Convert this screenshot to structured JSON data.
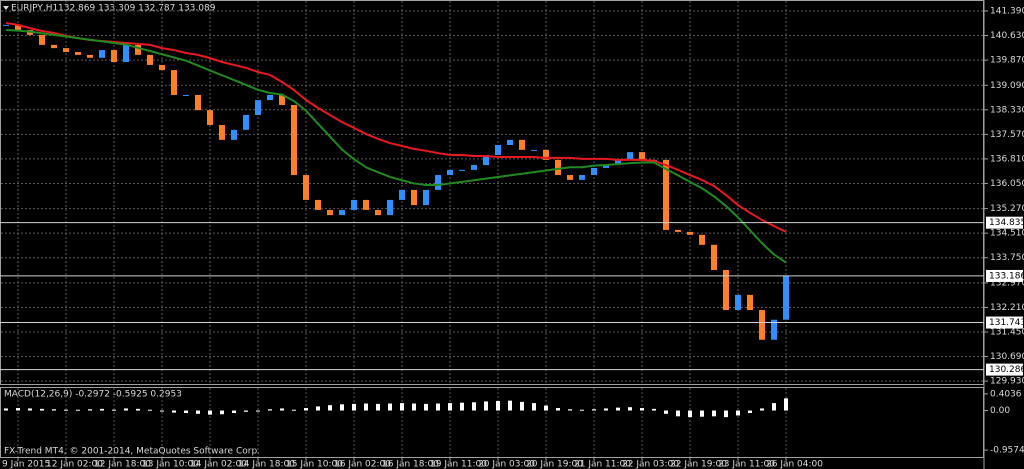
{
  "chart_data": [
    {
      "type": "line",
      "title": "EURJPY,H1",
      "ohlc": "132.869 133.309 132.787 133.089",
      "categories": [
        null,
        "9 Jan 2015",
        null,
        null,
        null,
        "12 Jan 02:00",
        null,
        null,
        null,
        "12 Jan 18:00",
        null,
        null,
        null,
        "13 Jan 10:00",
        null,
        null,
        null,
        "14 Jan 02:00",
        null,
        null,
        null,
        "14 Jan 18:00",
        null,
        null,
        null,
        "15 Jan 10:00",
        null,
        null,
        null,
        "16 Jan 02:00",
        null,
        null,
        null,
        "16 Jan 18:00",
        null,
        null,
        null,
        "19 Jan 11:00",
        null,
        null,
        null,
        "20 Jan 03:00",
        null,
        null,
        null,
        "20 Jan 19:00",
        null,
        null,
        null,
        "21 Jan 11:00",
        null,
        null,
        null,
        "22 Jan 03:00",
        null,
        null,
        null,
        "22 Jan 19:00",
        null,
        null,
        null,
        "23 Jan 11:00",
        null,
        null,
        null,
        "26 Jan 04:00"
      ],
      "series": [
        {
          "style": "candles",
          "color": "#2f8fff",
          "down_color": "#ff7f27",
          "values": [
            140.96,
            140.8,
            140.65,
            140.34,
            140.24,
            140.12,
            140.03,
            139.94,
            140.18,
            139.81,
            140.34,
            140.03,
            139.72,
            139.56,
            138.79,
            138.79,
            138.32,
            137.86,
            137.4,
            137.71,
            138.17,
            138.63,
            138.79,
            138.48,
            136.31,
            135.54,
            135.23,
            135.07,
            135.23,
            135.54,
            135.23,
            135.07,
            135.54,
            135.85,
            135.38,
            135.85,
            136.31,
            136.47,
            136.47,
            136.62,
            136.93,
            137.24,
            137.4,
            137.09,
            137.09,
            136.78,
            136.31,
            136.16,
            136.31,
            136.53,
            136.62,
            136.78,
            137.02,
            136.78,
            136.78,
            134.61,
            134.55,
            134.46,
            134.15,
            133.37,
            132.13,
            132.6,
            132.13,
            131.21,
            131.83,
            133.19
          ]
        },
        {
          "style": "line",
          "color": "#e8181e",
          "values": [
            141.02,
            140.96,
            140.86,
            140.77,
            140.71,
            140.62,
            140.55,
            140.49,
            140.46,
            140.43,
            140.4,
            140.37,
            140.34,
            140.24,
            140.18,
            140.09,
            140.03,
            139.93,
            139.81,
            139.72,
            139.63,
            139.5,
            139.41,
            139.19,
            138.94,
            138.63,
            138.39,
            138.17,
            137.95,
            137.77,
            137.58,
            137.43,
            137.3,
            137.21,
            137.12,
            137.06,
            136.99,
            136.93,
            136.93,
            136.9,
            136.9,
            136.87,
            136.87,
            136.87,
            136.87,
            136.84,
            136.84,
            136.84,
            136.81,
            136.81,
            136.81,
            136.78,
            136.78,
            136.78,
            136.75,
            136.62,
            136.47,
            136.31,
            136.16,
            135.97,
            135.69,
            135.38,
            135.14,
            134.92,
            134.73,
            134.55
          ]
        },
        {
          "style": "line",
          "color": "#1f8a1f",
          "values": [
            140.8,
            140.78,
            140.75,
            140.7,
            140.65,
            140.6,
            140.55,
            140.5,
            140.45,
            140.4,
            140.35,
            140.25,
            140.15,
            140.05,
            139.95,
            139.85,
            139.7,
            139.55,
            139.4,
            139.25,
            139.1,
            138.95,
            138.85,
            138.8,
            138.6,
            138.3,
            137.9,
            137.5,
            137.1,
            136.8,
            136.55,
            136.4,
            136.25,
            136.15,
            136.05,
            136.0,
            136.0,
            136.05,
            136.1,
            136.15,
            136.2,
            136.25,
            136.3,
            136.35,
            136.4,
            136.45,
            136.5,
            136.55,
            136.55,
            136.6,
            136.62,
            136.65,
            136.68,
            136.7,
            136.7,
            136.5,
            136.3,
            136.1,
            135.9,
            135.65,
            135.35,
            135.0,
            134.6,
            134.2,
            133.85,
            133.6
          ]
        }
      ],
      "ylim": [
        129.84,
        141.73
      ],
      "yticks": [
        {
          "value": 141.39,
          "label": "141.390"
        },
        {
          "value": 140.63,
          "label": "140.630"
        },
        {
          "value": 139.87,
          "label": "139.870"
        },
        {
          "value": 139.09,
          "label": "139.090"
        },
        {
          "value": 138.33,
          "label": "138.330"
        },
        {
          "value": 137.57,
          "label": "137.570"
        },
        {
          "value": 136.81,
          "label": "136.810"
        },
        {
          "value": 136.05,
          "label": "136.050"
        },
        {
          "value": 135.27,
          "label": "135.270"
        },
        {
          "value": 134.51,
          "label": "134.510"
        },
        {
          "value": 133.75,
          "label": "133.750"
        },
        {
          "value": 132.97,
          "label": "132.970"
        },
        {
          "value": 132.21,
          "label": "132.210"
        },
        {
          "value": 131.45,
          "label": "131.450"
        },
        {
          "value": 130.69,
          "label": "130.690"
        },
        {
          "value": 129.93,
          "label": "129.930"
        }
      ],
      "levels": [
        {
          "value": 134.835,
          "label": "134.835"
        },
        {
          "value": 133.186,
          "label": "133.186"
        },
        {
          "value": 131.743,
          "label": "131.743"
        },
        {
          "value": 130.286,
          "label": "130.286"
        }
      ],
      "grid": true
    },
    {
      "type": "bar",
      "title": "MACD(12,26,9) -0.2972 -0.5925 0.2953",
      "footer": "FX-Trend MT4, © 2001-2014, MetaQuotes Software Corp.",
      "series": [
        {
          "color": "#ffffff",
          "values": [
            0.05,
            0.06,
            0.05,
            0.04,
            0.03,
            0.02,
            0.02,
            0.03,
            0.04,
            0.02,
            0.05,
            0.04,
            0.02,
            -0.02,
            -0.05,
            -0.06,
            -0.08,
            -0.1,
            -0.09,
            -0.06,
            -0.03,
            0.0,
            0.03,
            0.05,
            0.02,
            0.06,
            0.1,
            0.13,
            0.15,
            0.16,
            0.17,
            0.16,
            0.17,
            0.18,
            0.17,
            0.16,
            0.17,
            0.18,
            0.19,
            0.2,
            0.22,
            0.23,
            0.24,
            0.21,
            0.18,
            0.12,
            0.06,
            0.03,
            0.02,
            0.03,
            0.05,
            0.07,
            0.08,
            0.06,
            0.04,
            -0.08,
            -0.14,
            -0.16,
            -0.15,
            -0.14,
            -0.16,
            -0.12,
            -0.06,
            0.05,
            0.18,
            0.2953
          ]
        }
      ],
      "ylim": [
        -1.15,
        0.57
      ],
      "yticks": [
        0.4036,
        {
          "value": 0,
          "label": "0.00"
        },
        -0.9574
      ]
    }
  ]
}
